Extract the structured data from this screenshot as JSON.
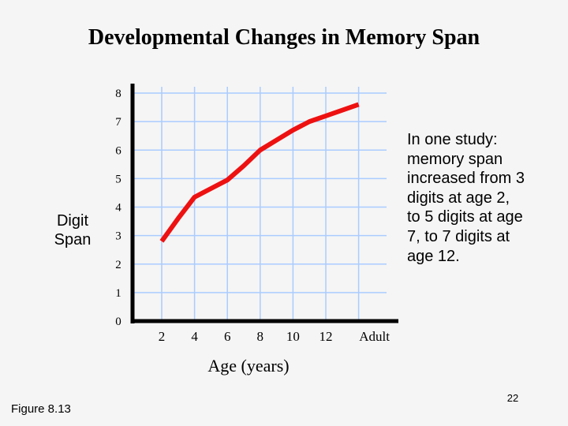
{
  "chart_data": {
    "type": "line",
    "title": "Developmental Changes in Memory Span",
    "xlabel": "Age (years)",
    "ylabel": "Digit Span",
    "x_tick_labels": [
      "2",
      "4",
      "6",
      "8",
      "10",
      "12",
      "Adult"
    ],
    "y_ticks": [
      0,
      1,
      2,
      3,
      4,
      5,
      6,
      7,
      8
    ],
    "ylim": [
      0,
      8
    ],
    "grid": true,
    "series": [
      {
        "color": "#ee1111",
        "points": [
          {
            "x": 2,
            "y": 2.8
          },
          {
            "x": 3,
            "y": 3.6
          },
          {
            "x": 4,
            "y": 4.35
          },
          {
            "x": 5,
            "y": 4.65
          },
          {
            "x": 6,
            "y": 4.95
          },
          {
            "x": 7,
            "y": 5.45
          },
          {
            "x": 8,
            "y": 6.0
          },
          {
            "x": 9,
            "y": 6.35
          },
          {
            "x": 10,
            "y": 6.7
          },
          {
            "x": 11,
            "y": 7.0
          },
          {
            "x": 12,
            "y": 7.2
          },
          {
            "x": 13,
            "y": 7.4
          },
          {
            "x": 14,
            "y": 7.6
          }
        ]
      }
    ],
    "annotation": "In one study: memory span increased from 3 digits at age 2, to 5 digits at age 7, to 7 digits at age 12."
  },
  "footer": {
    "figure_label": "Figure 8.13",
    "page_number": "22"
  },
  "colors": {
    "grid": "#aaccff",
    "axis": "#000000",
    "line": "#ee1111",
    "background": "#f5f5f5"
  }
}
